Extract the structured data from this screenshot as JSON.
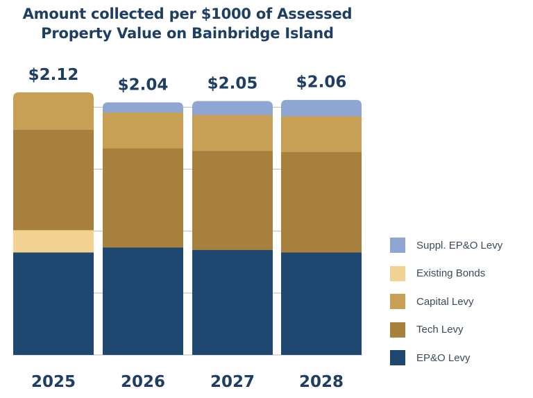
{
  "chart_data": {
    "type": "bar",
    "stacked": true,
    "title": "Amount collected per $1000 of Assessed Property Value on Bainbridge Island",
    "title_lines": [
      "Amount collected per $1000 of Assessed",
      "Property Value on Bainbridge Island"
    ],
    "xlabel": "",
    "ylabel": "",
    "ylim": [
      0,
      2.12
    ],
    "grid": true,
    "gridline_step": 0.5,
    "legend_position": "bottom-right",
    "categories": [
      "2025",
      "2026",
      "2027",
      "2028"
    ],
    "totals": [
      2.12,
      2.04,
      2.05,
      2.06
    ],
    "total_labels": [
      "$2.12",
      "$2.04",
      "$2.05",
      "$2.06"
    ],
    "series": [
      {
        "name": "EP&O Levy",
        "color": "#1f4870",
        "values": [
          0.83,
          0.87,
          0.85,
          0.83
        ]
      },
      {
        "name": "Existing Bonds",
        "color": "#f3d393",
        "values": [
          0.18,
          0,
          0,
          0
        ]
      },
      {
        "name": "Tech Levy",
        "color": "#a8803d",
        "values": [
          0.81,
          0.8,
          0.8,
          0.81
        ]
      },
      {
        "name": "Capital Levy",
        "color": "#c8a055",
        "values": [
          0.3,
          0.29,
          0.29,
          0.29
        ]
      },
      {
        "name": "Suppl. EP&O Levy",
        "color": "#8fa6d2",
        "values": [
          0,
          0.08,
          0.11,
          0.13
        ]
      }
    ],
    "legend_order": [
      "Suppl. EP&O Levy",
      "Existing Bonds",
      "Capital Levy",
      "Tech Levy",
      "EP&O Levy"
    ]
  },
  "colors": {
    "title": "#1f3e63",
    "gridline": "#b9b9b9"
  }
}
